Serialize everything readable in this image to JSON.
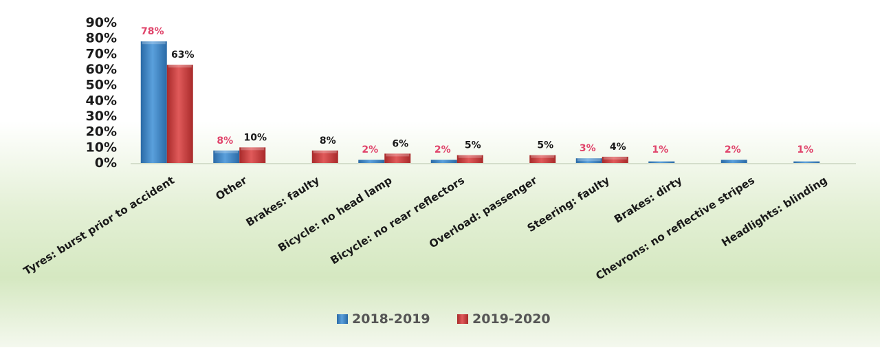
{
  "chart_data": {
    "type": "bar",
    "categories": [
      "Tyres: burst prior to accident",
      "Other",
      "Brakes: faulty",
      "Bicycle:  no head lamp",
      "Bicycle: no rear reflectors",
      "Overload: passenger",
      "Steering: faulty",
      "Brakes: dirty",
      "Chevrons: no reflective stripes",
      "Headlights: blinding"
    ],
    "series": [
      {
        "name": "2018-2019",
        "color": "#3b7fbd",
        "values": [
          78,
          8,
          0,
          2,
          2,
          0,
          3,
          1,
          2,
          1
        ],
        "labels": [
          "78%",
          "8%",
          "",
          "2%",
          "2%",
          "",
          "3%",
          "1%",
          "2%",
          "1%"
        ],
        "label_color": "#e0436a"
      },
      {
        "name": "2019-2020",
        "color": "#c83a3a",
        "values": [
          63,
          10,
          8,
          6,
          5,
          5,
          4,
          0,
          0,
          0
        ],
        "labels": [
          "63%",
          "10%",
          "8%",
          "6%",
          "5%",
          "5%",
          "4%",
          "",
          "",
          ""
        ],
        "label_color": "#1a1a1a"
      }
    ],
    "y_ticks": [
      "0%",
      "10%",
      "20%",
      "30%",
      "40%",
      "50%",
      "60%",
      "70%",
      "80%",
      "90%"
    ],
    "ylim": [
      0,
      90
    ],
    "grid": false,
    "legend_position": "bottom-center",
    "title": "",
    "xlabel": "",
    "ylabel": ""
  }
}
